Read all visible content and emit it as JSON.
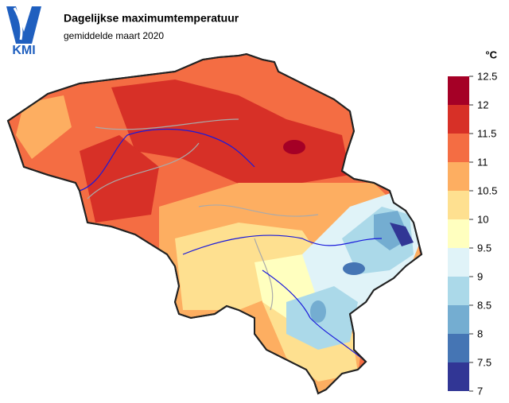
{
  "logo": "KMI",
  "title": "Dagelijkse maximumtemperatuur",
  "subtitle": "gemiddelde maart 2020",
  "legend": {
    "unit": "°C",
    "ticks": [
      12.5,
      12,
      11.5,
      11,
      10.5,
      10,
      9.5,
      9,
      8.5,
      8,
      7.5,
      7
    ],
    "colors": [
      "#a50026",
      "#d73027",
      "#f46d43",
      "#fdae61",
      "#fee090",
      "#ffffbf",
      "#e0f3f8",
      "#abd9e9",
      "#74add1",
      "#4575b4",
      "#313695"
    ]
  }
}
